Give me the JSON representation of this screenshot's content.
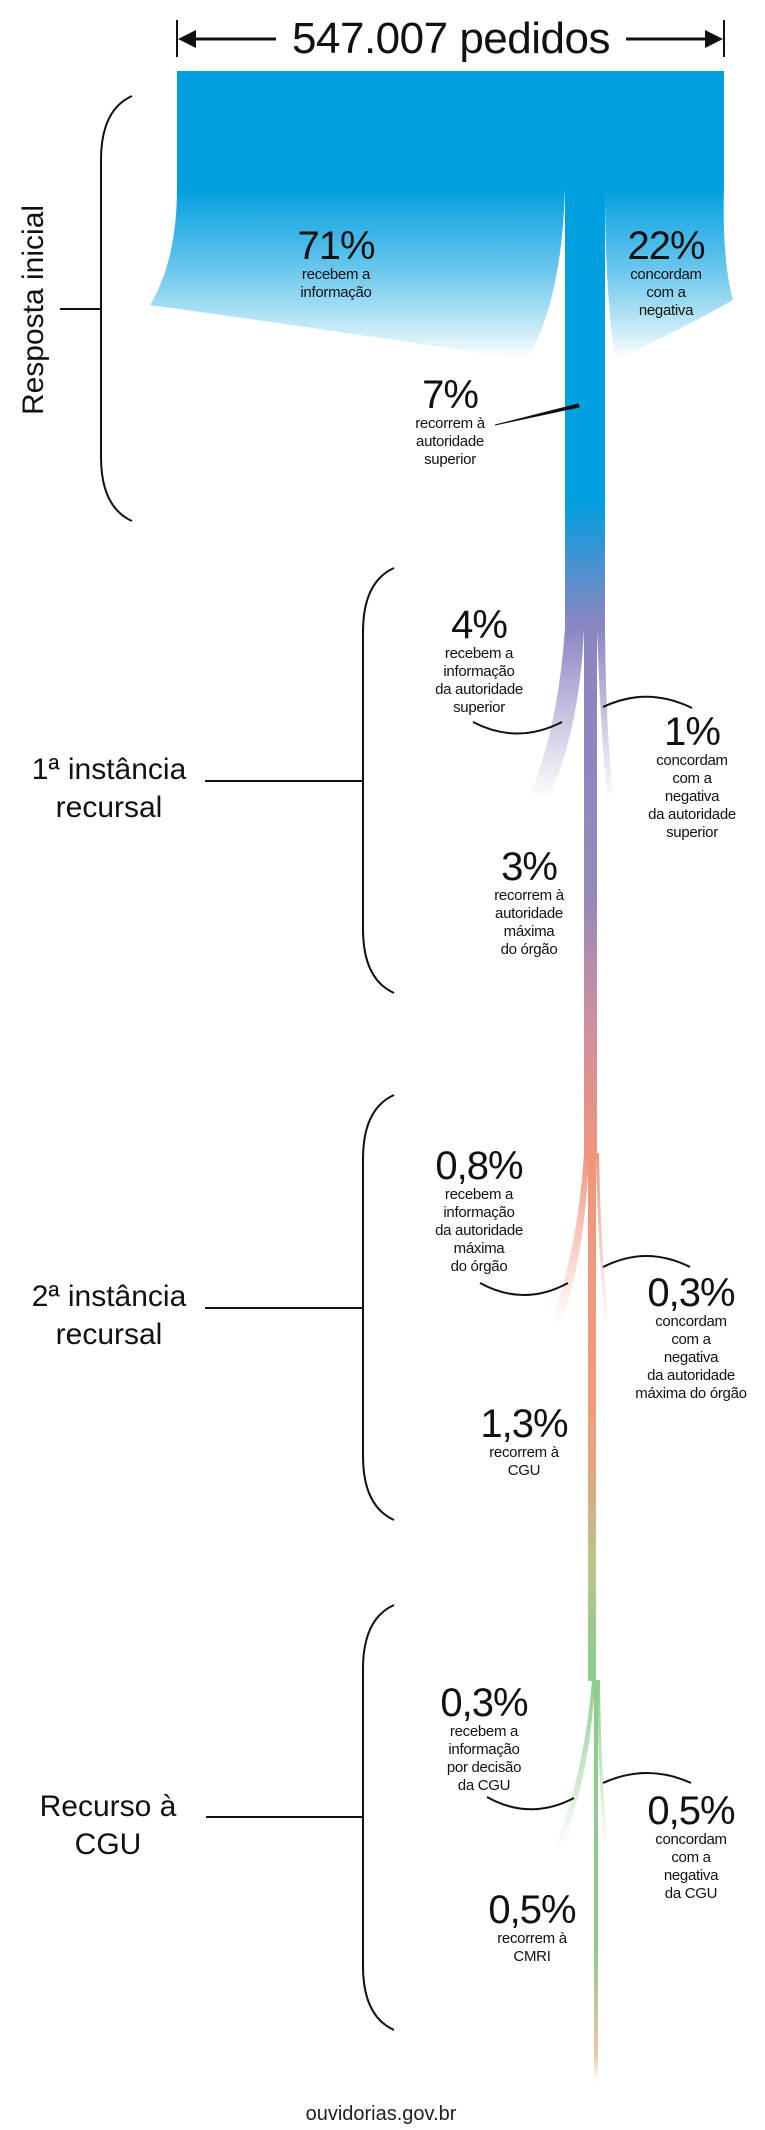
{
  "title": "547.007 pedidos",
  "colors": {
    "blue": "#009fe0",
    "purple": "#8a86c2",
    "salmon": "#f0957c",
    "green": "#8ccc8c"
  },
  "stages": [
    {
      "label": "Resposta inicial"
    },
    {
      "line1": "1ª instância",
      "line2": "recursal"
    },
    {
      "line1": "2ª instância",
      "line2": "recursal"
    },
    {
      "line1": "Recurso à",
      "line2": "CGU"
    }
  ],
  "flows": [
    {
      "value": "71%",
      "lines": [
        "recebem a",
        "informação"
      ]
    },
    {
      "value": "22%",
      "lines": [
        "concordam",
        "com a",
        "negativa"
      ]
    },
    {
      "value": "7%",
      "lines": [
        "recorrem à",
        "autoridade",
        "superior"
      ]
    },
    {
      "value": "4%",
      "lines": [
        "recebem a",
        "informação",
        "da autoridade",
        "superior"
      ]
    },
    {
      "value": "1%",
      "lines": [
        "concordam",
        "com a",
        "negativa",
        "da autoridade",
        "superior"
      ]
    },
    {
      "value": "3%",
      "lines": [
        "recorrem à",
        "autoridade",
        "máxima",
        "do órgão"
      ]
    },
    {
      "value": "0,8%",
      "lines": [
        "recebem a",
        "informação",
        "da autoridade",
        "máxima",
        "do órgão"
      ]
    },
    {
      "value": "0,3%",
      "lines": [
        "concordam",
        "com a",
        "negativa",
        "da autoridade",
        "máxima do órgão"
      ]
    },
    {
      "value": "1,3%",
      "lines": [
        "recorrem à",
        "CGU"
      ]
    },
    {
      "value": "0,3%",
      "lines": [
        "recebem a",
        "informação",
        "por decisão",
        "da CGU"
      ]
    },
    {
      "value": "0,5%",
      "lines": [
        "concordam",
        "com a",
        "negativa",
        "da CGU"
      ]
    },
    {
      "value": "0,5%",
      "lines": [
        "recorrem à",
        "CMRI"
      ]
    }
  ],
  "footer": "ouvidorias.gov.br"
}
